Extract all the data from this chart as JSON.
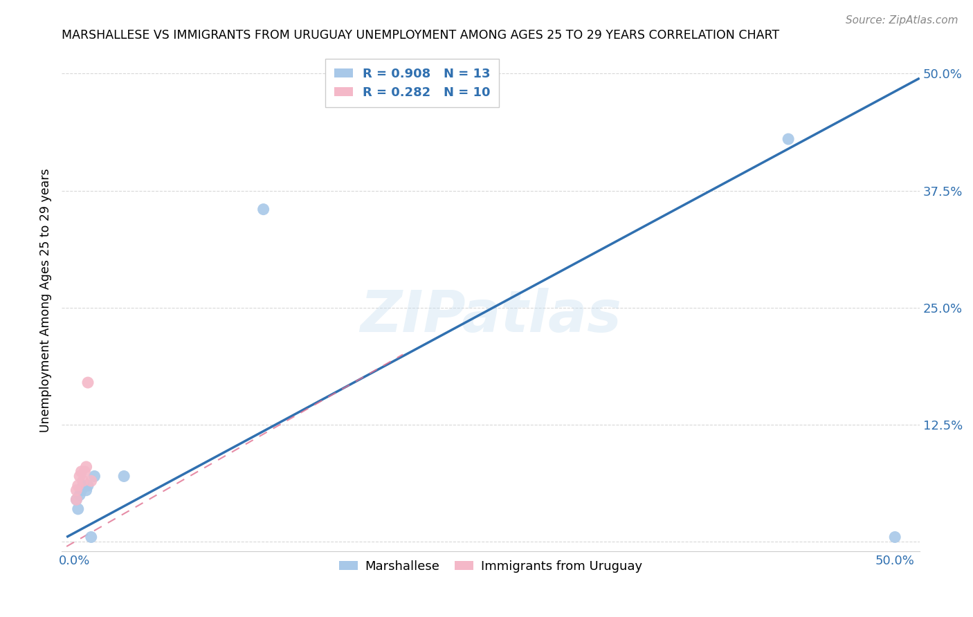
{
  "title": "MARSHALLESE VS IMMIGRANTS FROM URUGUAY UNEMPLOYMENT AMONG AGES 25 TO 29 YEARS CORRELATION CHART",
  "source": "Source: ZipAtlas.com",
  "ylabel": "Unemployment Among Ages 25 to 29 years",
  "x_ticks": [
    0.0,
    0.1,
    0.2,
    0.3,
    0.4,
    0.5
  ],
  "x_tick_labels": [
    "0.0%",
    "",
    "",
    "",
    "",
    "50.0%"
  ],
  "y_ticks": [
    0.0,
    0.125,
    0.25,
    0.375,
    0.5
  ],
  "y_tick_labels": [
    "",
    "12.5%",
    "25.0%",
    "37.5%",
    "50.0%"
  ],
  "xlim": [
    -0.008,
    0.515
  ],
  "ylim": [
    -0.01,
    0.525
  ],
  "blue_color": "#a8c8e8",
  "pink_color": "#f4b8c8",
  "blue_line_color": "#3070b0",
  "pink_line_color": "#e07090",
  "grid_color": "#d8d8d8",
  "watermark": "ZIPatlas",
  "legend_R_blue": "R = 0.908",
  "legend_N_blue": "N = 13",
  "legend_R_pink": "R = 0.282",
  "legend_N_pink": "N = 10",
  "legend_label_blue": "Marshallese",
  "legend_label_pink": "Immigrants from Uruguay",
  "marshallese_x": [
    0.001,
    0.002,
    0.003,
    0.004,
    0.005,
    0.007,
    0.008,
    0.01,
    0.012,
    0.03,
    0.115,
    0.435,
    0.5
  ],
  "marshallese_y": [
    0.045,
    0.035,
    0.05,
    0.055,
    0.06,
    0.055,
    0.06,
    0.005,
    0.07,
    0.07,
    0.355,
    0.43,
    0.005
  ],
  "uruguay_x": [
    0.001,
    0.001,
    0.002,
    0.003,
    0.004,
    0.005,
    0.006,
    0.007,
    0.008,
    0.01
  ],
  "uruguay_y": [
    0.045,
    0.055,
    0.06,
    0.07,
    0.075,
    0.065,
    0.075,
    0.08,
    0.17,
    0.065
  ],
  "blue_trend_x": [
    -0.005,
    0.515
  ],
  "blue_trend_y": [
    0.005,
    0.495
  ],
  "pink_trend_x": [
    -0.005,
    0.2
  ],
  "pink_trend_y": [
    -0.005,
    0.2
  ]
}
